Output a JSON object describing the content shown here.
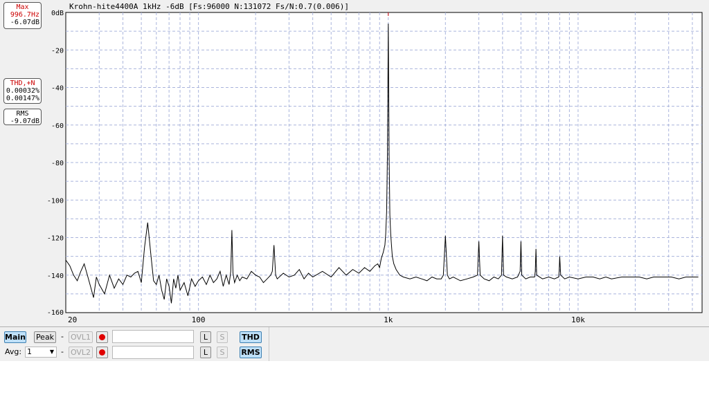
{
  "chart_data": {
    "type": "line",
    "title": "Krohn-hite4400A 1kHz -6dB  [Fs:96000 N:131072 Fs/N:0.7(0.006)]",
    "xscale": "log",
    "xlim": [
      20,
      45000
    ],
    "ylim": [
      -160,
      0
    ],
    "grid": true,
    "x_tick_labels": [
      {
        "value": 20,
        "label": "20"
      },
      {
        "value": 100,
        "label": "100"
      },
      {
        "value": 1000,
        "label": "1k"
      },
      {
        "value": 10000,
        "label": "10k"
      }
    ],
    "y_tick_labels": [
      {
        "value": 0,
        "label": "0dB"
      },
      {
        "value": -20,
        "label": "-20"
      },
      {
        "value": -40,
        "label": "-40"
      },
      {
        "value": -60,
        "label": "-60"
      },
      {
        "value": -80,
        "label": "-80"
      },
      {
        "value": -100,
        "label": "-100"
      },
      {
        "value": -120,
        "label": "-120"
      },
      {
        "value": -140,
        "label": "-140"
      },
      {
        "value": -160,
        "label": "-160"
      }
    ],
    "series": [
      {
        "color": "#000000",
        "x": [
          20,
          21,
          22,
          23,
          24,
          25,
          26,
          27,
          28,
          29,
          30,
          32,
          34,
          36,
          38,
          40,
          42,
          44,
          46,
          48,
          50,
          52,
          54,
          56,
          58,
          60,
          62,
          64,
          66,
          68,
          70,
          72,
          74,
          76,
          78,
          80,
          84,
          88,
          92,
          96,
          100,
          105,
          110,
          115,
          120,
          125,
          130,
          135,
          140,
          145,
          148,
          150,
          152,
          155,
          160,
          165,
          170,
          180,
          190,
          200,
          210,
          220,
          230,
          240,
          245,
          250,
          255,
          260,
          280,
          300,
          320,
          340,
          360,
          380,
          400,
          450,
          500,
          550,
          600,
          650,
          700,
          750,
          800,
          850,
          880,
          900,
          920,
          940,
          960,
          970,
          980,
          990,
          1000,
          1010,
          1020,
          1030,
          1040,
          1050,
          1070,
          1100,
          1150,
          1200,
          1300,
          1400,
          1500,
          1600,
          1700,
          1800,
          1900,
          1950,
          2000,
          2050,
          2100,
          2200,
          2400,
          2600,
          2800,
          2950,
          3000,
          3050,
          3200,
          3400,
          3600,
          3800,
          3950,
          4000,
          4050,
          4200,
          4500,
          4800,
          4950,
          5000,
          5050,
          5300,
          5600,
          5900,
          5950,
          6000,
          6050,
          6500,
          7000,
          7500,
          7900,
          7950,
          8000,
          8100,
          8500,
          9000,
          10000,
          11000,
          12000,
          13000,
          14000,
          15000,
          17000,
          19000,
          21000,
          23000,
          25000,
          28000,
          31000,
          34000,
          37000,
          40000,
          43000
        ],
        "values": [
          -132,
          -135,
          -140,
          -143,
          -138,
          -134,
          -140,
          -146,
          -152,
          -141,
          -145,
          -150,
          -140,
          -147,
          -142,
          -145,
          -140,
          -141,
          -139,
          -138,
          -144,
          -125,
          -112,
          -128,
          -143,
          -145,
          -140,
          -148,
          -153,
          -142,
          -146,
          -155,
          -142,
          -147,
          -140,
          -148,
          -144,
          -151,
          -142,
          -146,
          -143,
          -141,
          -145,
          -140,
          -144,
          -142,
          -138,
          -146,
          -140,
          -145,
          -138,
          -116,
          -139,
          -144,
          -140,
          -143,
          -141,
          -142,
          -138,
          -140,
          -141,
          -144,
          -142,
          -140,
          -138,
          -124,
          -140,
          -142,
          -139,
          -141,
          -140,
          -137,
          -142,
          -139,
          -141,
          -138,
          -141,
          -136,
          -140,
          -137,
          -139,
          -136,
          -138,
          -135,
          -134,
          -136,
          -131,
          -128,
          -124,
          -118,
          -106,
          -75,
          -6,
          -76,
          -108,
          -118,
          -124,
          -130,
          -134,
          -137,
          -140,
          -141,
          -142,
          -141,
          -142,
          -143,
          -141,
          -142,
          -142,
          -140,
          -119,
          -140,
          -142,
          -141,
          -143,
          -142,
          -141,
          -140,
          -122,
          -140,
          -142,
          -143,
          -141,
          -142,
          -140,
          -119,
          -140,
          -141,
          -142,
          -141,
          -138,
          -122,
          -140,
          -142,
          -141,
          -141,
          -138,
          -126,
          -140,
          -142,
          -141,
          -142,
          -141,
          -138,
          -130,
          -140,
          -142,
          -141,
          -142,
          -141,
          -141,
          -142,
          -141,
          -142,
          -141,
          -141,
          -141,
          -142,
          -141,
          -141,
          -141,
          -142,
          -141,
          -141,
          -141
        ]
      }
    ]
  },
  "readouts": {
    "max_label": "Max",
    "max_freq": "996.7Hz",
    "max_level": "-6.07dB",
    "thd_label": "THD,+N",
    "thd_value": "0.00032%",
    "thdn_value": "0.00147%",
    "rms_label": "RMS",
    "rms_value": "-9.07dB"
  },
  "toolbar": {
    "main_label": "Main",
    "peak_label": "Peak",
    "dash1": "-",
    "ovl1_label": "OVL1",
    "l1_label": "L",
    "s1_label": "S",
    "thd_label": "THD",
    "avg_label": "Avg:",
    "avg_value": "1",
    "dash2": "-",
    "ovl2_label": "OVL2",
    "l2_label": "L",
    "s2_label": "S",
    "rms_label": "RMS"
  },
  "colors": {
    "grid": "#a9b4dc",
    "trace": "#000000",
    "peak_marker": "#cc0000",
    "accent": "#bfe0f8"
  }
}
